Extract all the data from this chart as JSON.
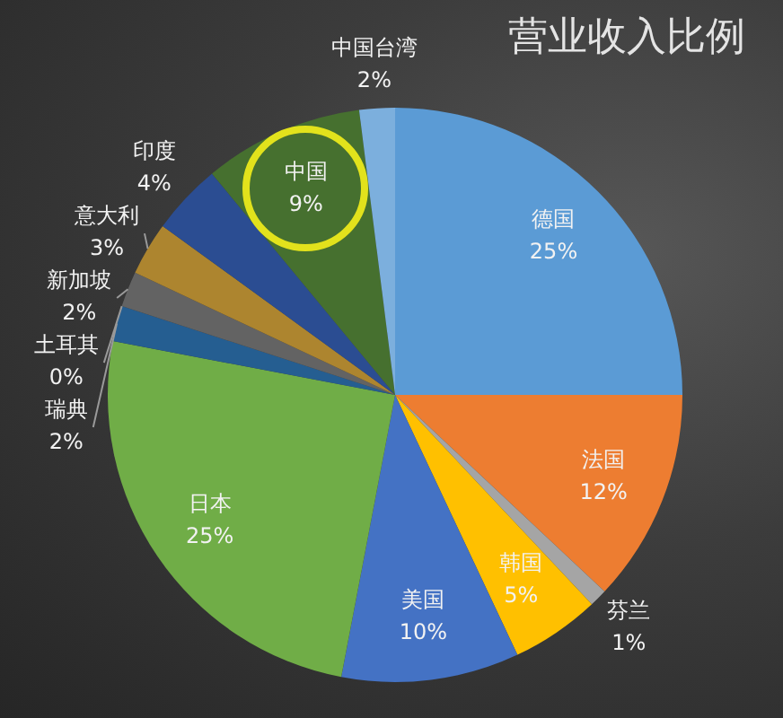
{
  "chart_data": {
    "type": "pie",
    "title": "营业收入比例",
    "categories": [
      "德国",
      "法国",
      "芬兰",
      "韩国",
      "美国",
      "日本",
      "瑞典",
      "土耳其",
      "新加坡",
      "意大利",
      "印度",
      "中国",
      "中国台湾"
    ],
    "values": [
      25,
      12,
      1,
      5,
      10,
      25,
      2,
      0,
      2,
      3,
      4,
      9,
      2
    ],
    "value_labels": [
      "25%",
      "12%",
      "1%",
      "5%",
      "10%",
      "25%",
      "2%",
      "0%",
      "2%",
      "3%",
      "4%",
      "9%",
      "2%"
    ],
    "colors": [
      "#5b9bd5",
      "#ed7d31",
      "#a5a5a5",
      "#ffc000",
      "#4472c4",
      "#70ad47",
      "#255e91",
      "#9e480e",
      "#636363",
      "#ad852f",
      "#2b4d92",
      "#46702f",
      "#7cafdd"
    ]
  }
}
